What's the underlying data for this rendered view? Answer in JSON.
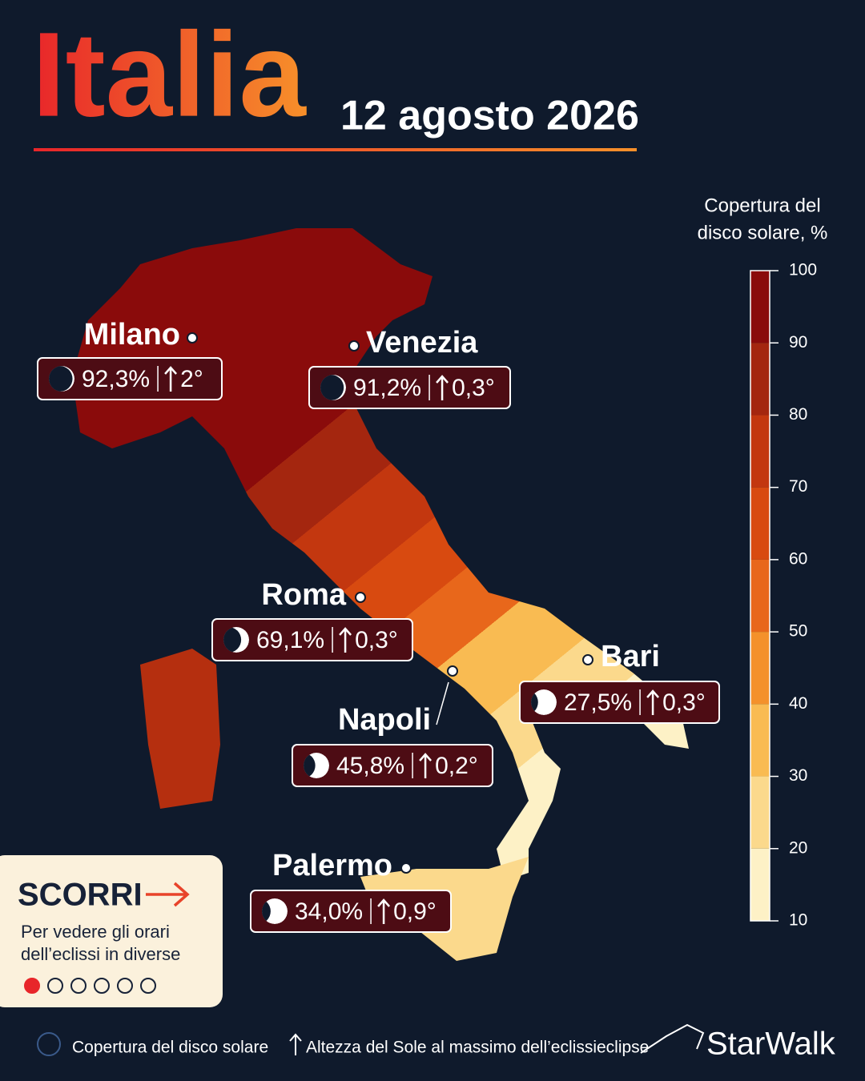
{
  "header": {
    "title": "Italia",
    "date": "12 agosto 2026"
  },
  "legend": {
    "title_lines": [
      "Copertura del",
      "disco solare, %"
    ],
    "ticks": [
      100,
      90,
      80,
      70,
      60,
      50,
      40,
      30,
      20,
      10
    ],
    "colors": [
      "#8a0b0b",
      "#a4260f",
      "#c3370f",
      "#d84a10",
      "#e8671b",
      "#f4912b",
      "#f9bb52",
      "#fbd98c",
      "#fdf1c6"
    ]
  },
  "cities": [
    {
      "name": "Milano",
      "coverage": {
        "value": 92.3,
        "label": "92,3%"
      },
      "altitude": "2°"
    },
    {
      "name": "Venezia",
      "coverage": {
        "value": 91.2,
        "label": "91,2%"
      },
      "altitude": "0,3°"
    },
    {
      "name": "Roma",
      "coverage": {
        "value": 69.1,
        "label": "69,1%"
      },
      "altitude": "0,3°"
    },
    {
      "name": "Bari",
      "coverage": {
        "value": 27.5,
        "label": "27,5%"
      },
      "altitude": "0,3°"
    },
    {
      "name": "Napoli",
      "coverage": {
        "value": 45.8,
        "label": "45,8%"
      },
      "altitude": "0,2°"
    },
    {
      "name": "Palermo",
      "coverage": {
        "value": 34.0,
        "label": "34,0%"
      },
      "altitude": "0,9°"
    }
  ],
  "scroll_card": {
    "title": "SCORRI",
    "text_lines": [
      "Per vedere gli orari",
      "dell’eclissi in diverse"
    ],
    "pages": 6
  },
  "footer": {
    "coverage_note": "Copertura del disco solare",
    "altitude_note": "Altezza del Sole al massimo dell’eclissieclipse",
    "brand": "StarWalk"
  }
}
